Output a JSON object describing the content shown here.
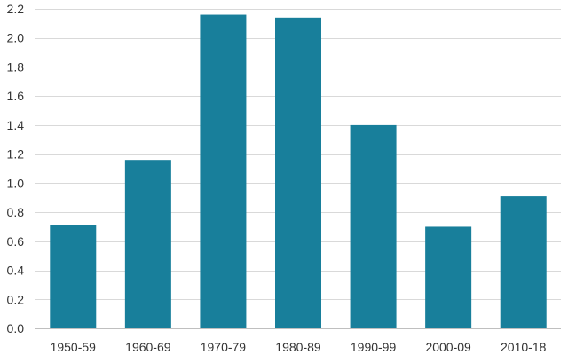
{
  "chart_data": {
    "type": "bar",
    "categories": [
      "1950-59",
      "1960-69",
      "1970-79",
      "1980-89",
      "1990-99",
      "2000-09",
      "2010-18"
    ],
    "values": [
      0.71,
      1.16,
      2.16,
      2.14,
      1.4,
      0.7,
      0.91
    ],
    "ylim": [
      0,
      2.2
    ],
    "yticks": [
      "0.0",
      "0.2",
      "0.4",
      "0.6",
      "0.8",
      "1.0",
      "1.2",
      "1.4",
      "1.6",
      "1.8",
      "2.0",
      "2.2"
    ],
    "grid": true,
    "legend": "none",
    "bar_color": "#187f9b",
    "grid_color": "#d9d9d9",
    "axis_color": "#bfbfbf",
    "text_color": "#333333"
  }
}
